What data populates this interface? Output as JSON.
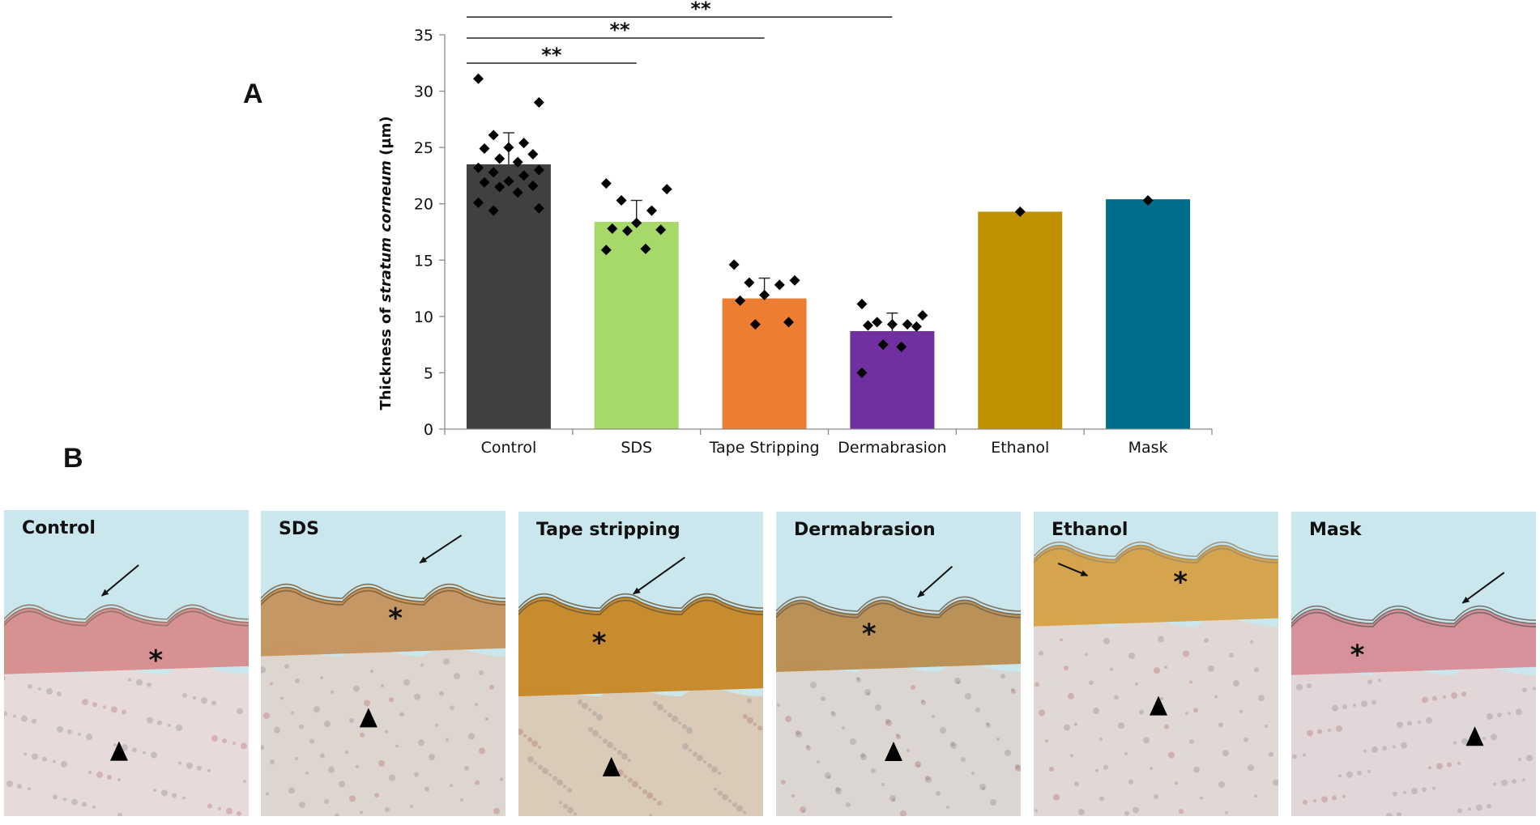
{
  "panel_a_label": "A",
  "panel_b_label": "B",
  "chart_data": {
    "type": "bar",
    "title": "",
    "xlabel": "",
    "ylabel": {
      "prefix": "Thickness of ",
      "italic": "stratum corneum",
      "suffix": " (µm)"
    },
    "ylim": [
      0,
      35
    ],
    "yticks": [
      0,
      5,
      10,
      15,
      20,
      25,
      30,
      35
    ],
    "grid": false,
    "categories": [
      "Control",
      "SDS",
      "Tape Stripping",
      "Dermabrasion",
      "Ethanol",
      "Mask"
    ],
    "values": [
      23.5,
      18.4,
      11.6,
      8.7,
      19.3,
      20.4
    ],
    "errors": [
      2.8,
      1.9,
      1.8,
      1.6,
      0,
      0
    ],
    "colors": [
      "#404040",
      "#a6d96a",
      "#ed7d31",
      "#7030a0",
      "#bf9000",
      "#006e8c"
    ],
    "points": [
      [
        31.1,
        29.0,
        26.1,
        25.4,
        25.0,
        24.9,
        24.4,
        24.0,
        23.7,
        23.2,
        23.0,
        22.8,
        22.5,
        22.0,
        21.9,
        21.6,
        21.5,
        21.0,
        20.1,
        19.6,
        19.4
      ],
      [
        21.8,
        21.3,
        20.3,
        19.4,
        18.3,
        17.8,
        17.7,
        17.6,
        16.0,
        15.9
      ],
      [
        14.6,
        13.2,
        13.0,
        12.8,
        11.9,
        11.4,
        9.5,
        9.3
      ],
      [
        11.1,
        10.1,
        9.5,
        9.3,
        9.3,
        9.2,
        9.1,
        7.5,
        7.3,
        5.0
      ],
      [
        19.3
      ],
      [
        20.3
      ]
    ],
    "significance": [
      {
        "from": "Control",
        "to": "SDS",
        "label": "**"
      },
      {
        "from": "Control",
        "to": "Tape Stripping",
        "label": "**"
      },
      {
        "from": "Control",
        "to": "Dermabrasion",
        "label": "**"
      }
    ]
  },
  "micrographs": [
    {
      "title": "Control",
      "epidermis_color": "#d88a8a",
      "sc_color": "#8a7060",
      "dermis_color": "#e6dada"
    },
    {
      "title": "SDS",
      "epidermis_color": "#c49058",
      "sc_color": "#7a5a30",
      "dermis_color": "#ddd6cf"
    },
    {
      "title": "Tape stripping",
      "epidermis_color": "#c8841e",
      "sc_color": "#6a5a40",
      "dermis_color": "#d9cbb8"
    },
    {
      "title": "Dermabrasion",
      "epidermis_color": "#b88a4a",
      "sc_color": "#6e6050",
      "dermis_color": "#dcd6d2"
    },
    {
      "title": "Ethanol",
      "epidermis_color": "#d6a040",
      "sc_color": "#9a8a70",
      "dermis_color": "#dfd8d4"
    },
    {
      "title": "Mask",
      "epidermis_color": "#d88a94",
      "sc_color": "#6a6060",
      "dermis_color": "#e2d7d8"
    }
  ],
  "markers": {
    "asterisk": "*",
    "arrow_icon": "arrow-icon",
    "arrowhead_icon": "triangle-icon"
  }
}
